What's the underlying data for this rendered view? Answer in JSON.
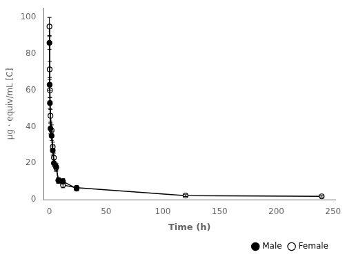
{
  "chart_data": {
    "type": "line",
    "x_label": "Time (h)",
    "y_label": "μg · equiv/mL [C]",
    "xlim": [
      -5,
      252
    ],
    "ylim": [
      0,
      105
    ],
    "xticks": [
      0,
      50,
      100,
      150,
      200,
      250
    ],
    "yticks": [
      0,
      20,
      40,
      60,
      80,
      100
    ],
    "grid": false,
    "legend": "lower right",
    "series": [
      {
        "name": "Male",
        "color": "#000000",
        "marker": "circle",
        "x": [
          0.083,
          0.25,
          0.5,
          1,
          2,
          3,
          4,
          6,
          8,
          12,
          24
        ],
        "values": [
          86.0,
          63.0,
          53.0,
          39.0,
          35.0,
          27.0,
          20.0,
          18.0,
          10.5,
          10.0,
          6.0
        ],
        "errors": [
          3.5,
          3.0,
          3.0,
          3.0,
          2.5,
          2.5,
          2.0,
          2.0,
          1.5,
          1.5,
          1.0
        ]
      },
      {
        "name": "Female",
        "color": "#000000",
        "marker": "open_circle",
        "x": [
          0.083,
          0.25,
          0.5,
          1,
          2,
          3,
          4,
          6,
          8,
          12,
          24,
          120,
          240
        ],
        "values": [
          95.0,
          71.5,
          60.0,
          46.0,
          38.0,
          29.0,
          23.0,
          17.5,
          10.5,
          8.0,
          6.5,
          2.2,
          1.8
        ],
        "errors": [
          5.0,
          4.5,
          4.0,
          3.5,
          3.0,
          2.5,
          2.5,
          2.0,
          1.5,
          1.5,
          1.0,
          0.5,
          0.4
        ]
      }
    ]
  }
}
